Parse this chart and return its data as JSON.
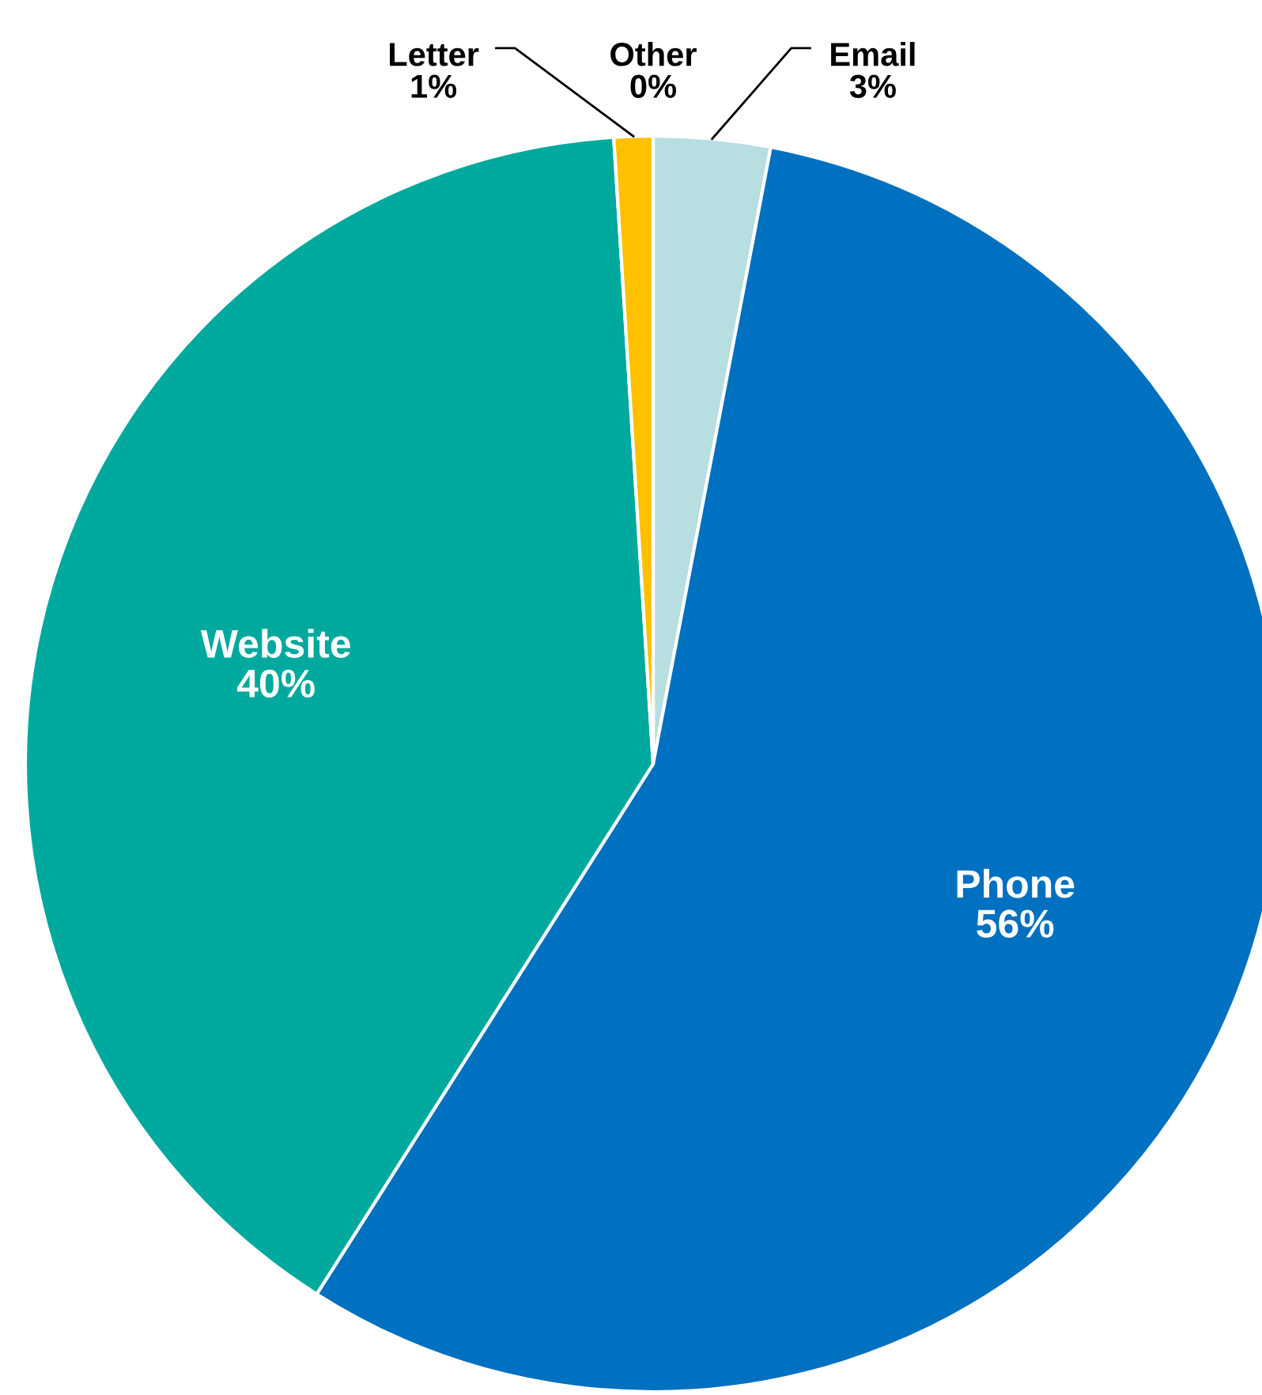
{
  "chart_data": {
    "type": "pie",
    "categories": [
      "Email",
      "Phone",
      "Website",
      "Letter",
      "Other"
    ],
    "values": [
      3,
      56,
      40,
      1,
      0
    ],
    "colors": [
      "#b7dee1",
      "#0070c0",
      "#00a99d",
      "#ffc000",
      "#f2f2f2"
    ],
    "value_labels": [
      "3%",
      "56%",
      "40%",
      "1%",
      "0%"
    ],
    "legend": false
  }
}
